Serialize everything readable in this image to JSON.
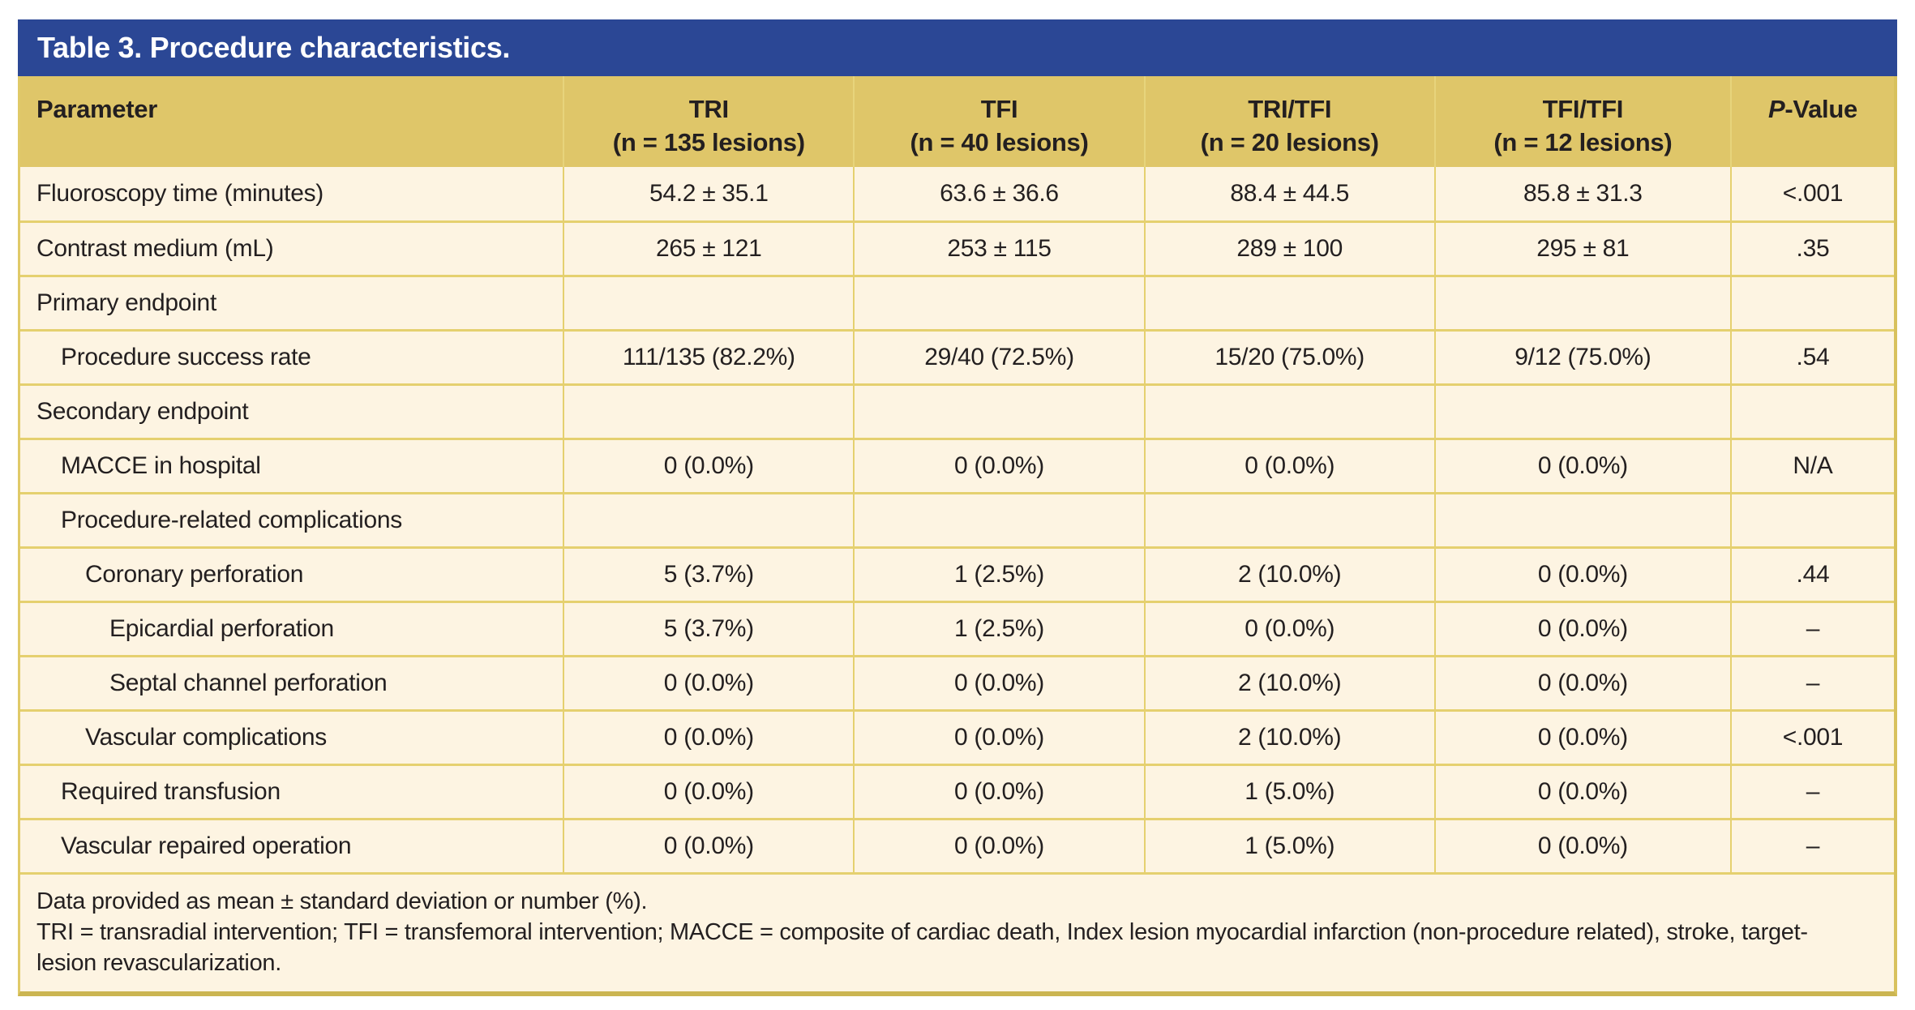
{
  "table": {
    "title": "Table 3. Procedure characteristics.",
    "columns": [
      {
        "label": "Parameter",
        "sub": ""
      },
      {
        "label": "TRI",
        "sub": "(n = 135 lesions)"
      },
      {
        "label": "TFI",
        "sub": "(n = 40 lesions)"
      },
      {
        "label": "TRI/TFI",
        "sub": "(n = 20 lesions)"
      },
      {
        "label": "TFI/TFI",
        "sub": "(n = 12 lesions)"
      },
      {
        "italic": "P",
        "label": "-Value",
        "sub": ""
      }
    ],
    "rows": [
      {
        "parameter": "Fluoroscopy time (minutes)",
        "indent": 0,
        "values": [
          "54.2 ± 35.1",
          "63.6 ± 36.6",
          "88.4 ± 44.5",
          "85.8 ± 31.3",
          "<.001"
        ]
      },
      {
        "parameter": "Contrast medium (mL)",
        "indent": 0,
        "values": [
          "265 ± 121",
          "253 ± 115",
          "289 ± 100",
          "295 ± 81",
          ".35"
        ]
      },
      {
        "parameter": "Primary endpoint",
        "indent": 0,
        "values": [
          "",
          "",
          "",
          "",
          ""
        ]
      },
      {
        "parameter": "Procedure success rate",
        "indent": 1,
        "values": [
          "111/135 (82.2%)",
          "29/40 (72.5%)",
          "15/20 (75.0%)",
          "9/12 (75.0%)",
          ".54"
        ]
      },
      {
        "parameter": "Secondary endpoint",
        "indent": 0,
        "values": [
          "",
          "",
          "",
          "",
          ""
        ]
      },
      {
        "parameter": "MACCE in hospital",
        "indent": 1,
        "values": [
          "0 (0.0%)",
          "0 (0.0%)",
          "0 (0.0%)",
          "0 (0.0%)",
          "N/A"
        ]
      },
      {
        "parameter": "Procedure-related complications",
        "indent": 1,
        "values": [
          "",
          "",
          "",
          "",
          ""
        ]
      },
      {
        "parameter": "Coronary perforation",
        "indent": 2,
        "values": [
          "5 (3.7%)",
          "1 (2.5%)",
          "2 (10.0%)",
          "0 (0.0%)",
          ".44"
        ]
      },
      {
        "parameter": "Epicardial perforation",
        "indent": 3,
        "values": [
          "5 (3.7%)",
          "1 (2.5%)",
          "0 (0.0%)",
          "0 (0.0%)",
          "–"
        ]
      },
      {
        "parameter": "Septal channel perforation",
        "indent": 3,
        "values": [
          "0 (0.0%)",
          "0 (0.0%)",
          "2 (10.0%)",
          "0 (0.0%)",
          "–"
        ]
      },
      {
        "parameter": "Vascular complications",
        "indent": 2,
        "values": [
          "0 (0.0%)",
          "0 (0.0%)",
          "2 (10.0%)",
          "0 (0.0%)",
          "<.001"
        ]
      },
      {
        "parameter": "Required transfusion",
        "indent": 1,
        "values": [
          "0 (0.0%)",
          "0 (0.0%)",
          "1 (5.0%)",
          "0 (0.0%)",
          "–"
        ]
      },
      {
        "parameter": "Vascular repaired operation",
        "indent": 1,
        "values": [
          "0 (0.0%)",
          "0 (0.0%)",
          "1 (5.0%)",
          "0 (0.0%)",
          "–"
        ]
      }
    ],
    "footnotes": [
      "Data provided as mean ± standard deviation or number (%).",
      "TRI = transradial intervention; TFI = transfemoral intervention; MACCE = composite of cardiac death, Index lesion myocardial infarction (non-procedure related), stroke, target-lesion revascularization."
    ],
    "colors": {
      "title_bar": "#2b4795",
      "title_text": "#ffffff",
      "header_background": "#dfc669",
      "row_background": "#fdf4e2",
      "grid_line": "#e5d06f",
      "outer_border": "#cbb551",
      "text": "#231f20"
    }
  }
}
